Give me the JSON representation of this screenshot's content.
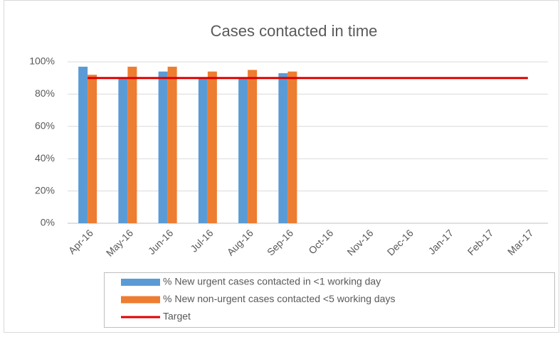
{
  "chart_data": {
    "type": "bar",
    "title": "Cases contacted in time",
    "categories": [
      "Apr-16",
      "May-16",
      "Jun-16",
      "Jul-16",
      "Aug-16",
      "Sep-16",
      "Oct-16",
      "Nov-16",
      "Dec-16",
      "Jan-17",
      "Feb-17",
      "Mar-17"
    ],
    "series": [
      {
        "name": "% New urgent cases contacted in <1 working day",
        "color": "#5b9bd5",
        "type": "bar",
        "values": [
          97,
          90,
          94,
          90,
          90,
          93,
          null,
          null,
          null,
          null,
          null,
          null
        ]
      },
      {
        "name": "% New non-urgent cases contacted <5 working days",
        "color": "#ed7d31",
        "type": "bar",
        "values": [
          92,
          97,
          97,
          94,
          95,
          94,
          null,
          null,
          null,
          null,
          null,
          null
        ]
      },
      {
        "name": "Target",
        "color": "#e00000",
        "type": "line",
        "values": [
          90,
          90,
          90,
          90,
          90,
          90,
          90,
          90,
          90,
          90,
          90,
          90
        ]
      }
    ],
    "ylim": [
      0,
      100
    ],
    "yticks": [
      {
        "value": 0,
        "label": "0%"
      },
      {
        "value": 20,
        "label": "20%"
      },
      {
        "value": 40,
        "label": "40%"
      },
      {
        "value": 60,
        "label": "60%"
      },
      {
        "value": 80,
        "label": "80%"
      },
      {
        "value": 100,
        "label": "100%"
      }
    ],
    "grid": true,
    "legend": "bottom"
  }
}
